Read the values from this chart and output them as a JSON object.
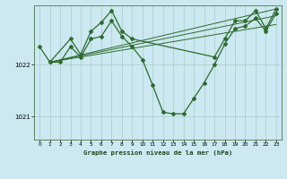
{
  "title": "Graphe pression niveau de la mer (hPa)",
  "background_color": "#cce8f0",
  "grid_color": "#aacccc",
  "line_color": "#2d6b2d",
  "marker_color": "#2d6b2d",
  "xlim": [
    -0.5,
    23.5
  ],
  "ylim": [
    1020.55,
    1023.15
  ],
  "yticks": [
    1021,
    1022
  ],
  "xticks": [
    0,
    1,
    2,
    3,
    4,
    5,
    6,
    7,
    8,
    9,
    10,
    11,
    12,
    13,
    14,
    15,
    16,
    17,
    18,
    19,
    20,
    21,
    22,
    23
  ],
  "main_x": [
    0,
    1,
    2,
    3,
    4,
    5,
    6,
    7,
    8,
    9,
    10,
    11,
    12,
    13,
    14,
    15,
    16,
    17,
    18,
    19,
    20,
    21,
    22,
    23
  ],
  "main_y": [
    1022.35,
    1022.05,
    1022.05,
    1022.35,
    1022.15,
    1022.5,
    1022.55,
    1022.85,
    1022.55,
    1022.35,
    1022.1,
    1021.6,
    1021.08,
    1021.05,
    1021.05,
    1021.35,
    1021.65,
    1022.0,
    1022.4,
    1022.7,
    1022.75,
    1022.9,
    1022.65,
    1023.0
  ],
  "upper_x": [
    1,
    3,
    4,
    5,
    6,
    7,
    8,
    9,
    17,
    18,
    19,
    20,
    21,
    22,
    23
  ],
  "upper_y": [
    1022.05,
    1022.5,
    1022.2,
    1022.65,
    1022.82,
    1023.05,
    1022.65,
    1022.5,
    1022.15,
    1022.5,
    1022.85,
    1022.85,
    1023.05,
    1022.7,
    1023.08
  ],
  "trend_lines": [
    {
      "x": [
        1,
        23
      ],
      "y": [
        1022.05,
        1022.78
      ]
    },
    {
      "x": [
        1,
        23
      ],
      "y": [
        1022.05,
        1022.95
      ]
    },
    {
      "x": [
        1,
        23
      ],
      "y": [
        1022.05,
        1023.08
      ]
    }
  ]
}
